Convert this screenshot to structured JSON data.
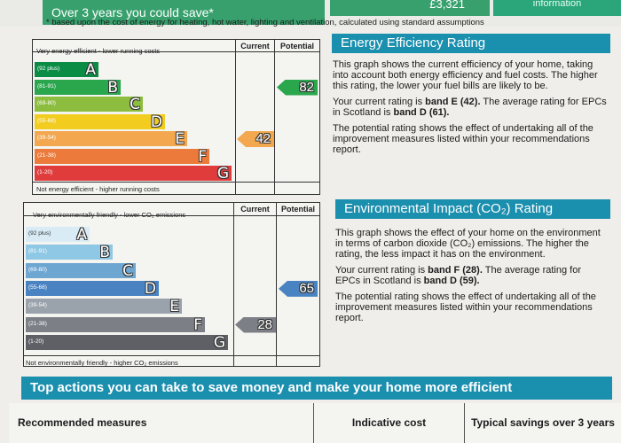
{
  "banner": {
    "save_text": "Over 3 years you could save*",
    "amount": "£3,321",
    "info_label": "information",
    "footnote": "* based upon the cost of energy for heating, hot water, lighting and ventilation, calculated using standard assumptions"
  },
  "energy": {
    "top_caption": "Very energy efficient - lower running costs",
    "bottom_caption": "Not energy efficient - higher running costs",
    "col_current": "Current",
    "col_potential": "Potential",
    "bands": [
      {
        "range": "(92 plus)",
        "letter": "A",
        "color": "#0b8c45"
      },
      {
        "range": "(81-91)",
        "letter": "B",
        "color": "#2aa64d"
      },
      {
        "range": "(69-80)",
        "letter": "C",
        "color": "#8cbd3f"
      },
      {
        "range": "(55-68)",
        "letter": "D",
        "color": "#f2cc1f"
      },
      {
        "range": "(39-54)",
        "letter": "E",
        "color": "#f3a84f"
      },
      {
        "range": "(21-38)",
        "letter": "F",
        "color": "#ec7a3a"
      },
      {
        "range": "(1-20)",
        "letter": "G",
        "color": "#e03c3c"
      }
    ],
    "current": "42",
    "current_color": "#f3a84f",
    "potential": "82",
    "potential_color": "#2aa64d"
  },
  "environment": {
    "top_caption": "Very environmentally friendly - lower CO₂ emissions",
    "bottom_caption": "Not environmentally friendly - higher CO₂ emissions",
    "col_current": "Current",
    "col_potential": "Potential",
    "bands": [
      {
        "range": "(92 plus)",
        "letter": "A",
        "color": "#d9ecf5"
      },
      {
        "range": "(81-91)",
        "letter": "B",
        "color": "#8fc8e4"
      },
      {
        "range": "(69-80)",
        "letter": "C",
        "color": "#6ea6d2"
      },
      {
        "range": "(55-68)",
        "letter": "D",
        "color": "#4a83c1"
      },
      {
        "range": "(39-54)",
        "letter": "E",
        "color": "#9aa2ab"
      },
      {
        "range": "(21-38)",
        "letter": "F",
        "color": "#7c7f86"
      },
      {
        "range": "(1-20)",
        "letter": "G",
        "color": "#5e6066"
      }
    ],
    "current": "28",
    "current_color": "#7c7f86",
    "potential": "65",
    "potential_color": "#4a83c1"
  },
  "eer_panel": {
    "title": "Energy Efficiency Rating",
    "p1": "This graph shows the current efficiency of your home, taking into account both energy efficiency and fuel costs. The higher this rating, the lower your fuel bills are likely to be.",
    "p2_prefix": "Your current rating is ",
    "p2_bold1": "band E (42).",
    "p2_mid": " The average rating for EPCs in Scotland is ",
    "p2_bold2": "band D (61).",
    "p3": "The potential rating shows the effect of undertaking all of the improvement measures listed within your recommendations report."
  },
  "eir_panel": {
    "title": "Environmental Impact (CO₂) Rating",
    "p1": "This graph shows the effect of your home on the environment in terms of carbon dioxide (CO₂) emissions. The higher the rating, the less impact it has on the environment.",
    "p2_prefix": "Your current rating is ",
    "p2_bold1": "band F (28).",
    "p2_mid": " The average rating for EPCs in Scotland is ",
    "p2_bold2": "band D (59).",
    "p3": "The potential rating shows the effect of undertaking all of the improvement measures listed within your recommendations report."
  },
  "actions": {
    "title": "Top actions you can take to save money and make your home more efficient",
    "col1": "Recommended measures",
    "col2": "Indicative cost",
    "col3": "Typical savings over 3 years"
  }
}
